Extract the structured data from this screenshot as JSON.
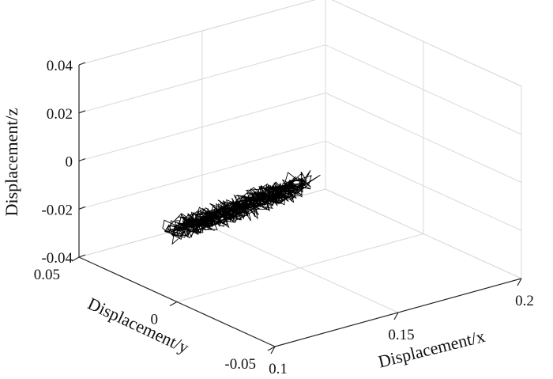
{
  "chart_data": {
    "type": "line",
    "projection": "3d",
    "grid": true,
    "xlabel": "Displacement/x",
    "ylabel": "Displacement/y",
    "zlabel": "Displacement/z",
    "xlim": [
      0.1,
      0.2
    ],
    "ylim": [
      -0.05,
      0.05
    ],
    "zlim": [
      -0.04,
      0.04
    ],
    "x_ticks": [
      0.1,
      0.15,
      0.2
    ],
    "y_ticks": [
      -0.05,
      0,
      0.05
    ],
    "z_ticks": [
      -0.04,
      -0.02,
      0,
      0.02,
      0.04
    ],
    "x_tick_labels": [
      "0.1",
      "0.15",
      "0.2"
    ],
    "y_tick_labels": [
      "-0.05",
      "0",
      "0.05"
    ],
    "z_tick_labels": [
      "-0.04",
      "-0.02",
      "0",
      "0.02",
      "0.04"
    ],
    "series": [
      {
        "color": "#000000",
        "x": [
          0.1,
          0.112,
          0.125,
          0.138,
          0.15
        ],
        "y": [
          0.0,
          0.0,
          0.0,
          0.0,
          0.0
        ],
        "z": [
          -0.01,
          -0.009,
          -0.008,
          -0.007,
          -0.005
        ],
        "spread": [
          0.004,
          0.004,
          0.004,
          0.004,
          0.004
        ]
      }
    ]
  }
}
